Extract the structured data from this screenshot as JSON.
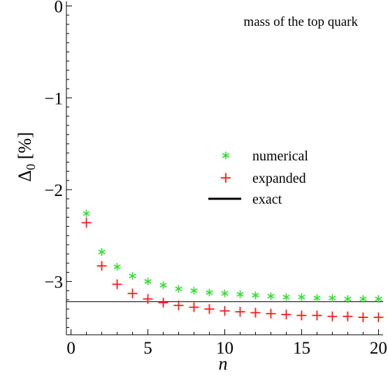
{
  "chart_data": {
    "type": "scatter",
    "title": "mass of the top quark",
    "xlabel": "n",
    "ylabel_main": "Δ",
    "ylabel_sub": "0",
    "ylabel_tail": " [%]",
    "xlim": [
      -0.3,
      20.3
    ],
    "ylim": [
      -3.58,
      0.05
    ],
    "xticks": [
      0,
      5,
      10,
      15,
      20
    ],
    "xtick_labels": [
      "0",
      "5",
      "10",
      "15",
      "20"
    ],
    "yticks": [
      0,
      -1,
      -2,
      -3
    ],
    "ytick_labels": [
      "0",
      "−1",
      "−2",
      "−3"
    ],
    "legend_position": "center-right",
    "series": [
      {
        "name": "numerical",
        "marker": "*",
        "color": "#2ee02e",
        "x": [
          1,
          2,
          3,
          4,
          5,
          6,
          7,
          8,
          9,
          10,
          11,
          12,
          13,
          14,
          15,
          16,
          17,
          18,
          19,
          20
        ],
        "values": [
          -2.26,
          -2.68,
          -2.84,
          -2.94,
          -3.0,
          -3.04,
          -3.08,
          -3.1,
          -3.12,
          -3.13,
          -3.14,
          -3.15,
          -3.16,
          -3.17,
          -3.17,
          -3.18,
          -3.18,
          -3.19,
          -3.19,
          -3.19
        ]
      },
      {
        "name": "expanded",
        "marker": "+",
        "color": "#ff1a1a",
        "x": [
          1,
          2,
          3,
          4,
          5,
          6,
          7,
          8,
          9,
          10,
          11,
          12,
          13,
          14,
          15,
          16,
          17,
          18,
          19,
          20
        ],
        "values": [
          -2.36,
          -2.83,
          -3.03,
          -3.13,
          -3.19,
          -3.23,
          -3.26,
          -3.28,
          -3.3,
          -3.32,
          -3.33,
          -3.34,
          -3.35,
          -3.36,
          -3.37,
          -3.37,
          -3.38,
          -3.38,
          -3.39,
          -3.39
        ]
      },
      {
        "name": "exact",
        "marker": "line",
        "color": "#000000",
        "y": -3.22
      }
    ]
  }
}
